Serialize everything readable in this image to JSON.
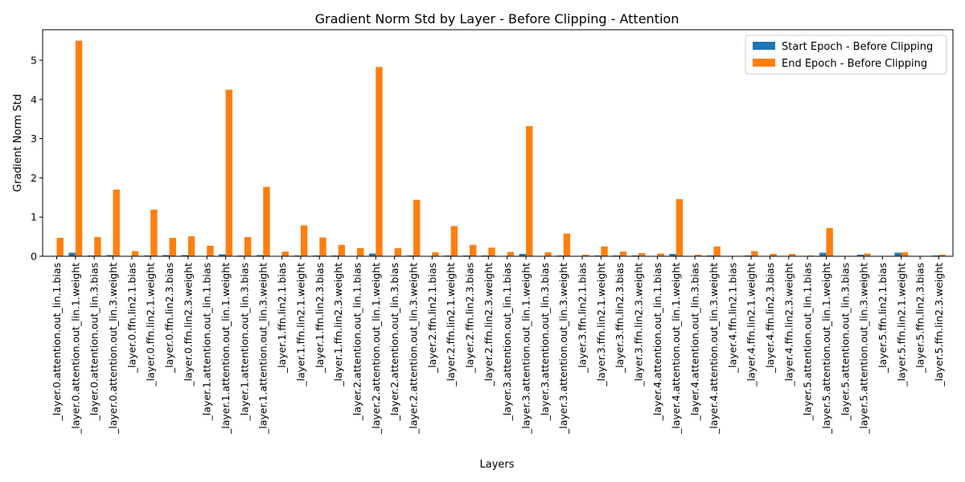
{
  "chart_data": {
    "type": "bar",
    "title": "Gradient Norm Std by Layer - Before Clipping - Attention",
    "xlabel": "Layers",
    "ylabel": "Gradient Norm Std",
    "ylim": [
      0,
      5.78
    ],
    "yticks": [
      0,
      1,
      2,
      3,
      4,
      5
    ],
    "legend_position": "top-right",
    "grid": false,
    "categories": [
      "_layer.0.attention.out_lin.1.bias",
      "_layer.0.attention.out_lin.1.weight",
      "_layer.0.attention.out_lin.3.bias",
      "_layer.0.attention.out_lin.3.weight",
      "_layer.0.ffn.lin2.1.bias",
      "_layer.0.ffn.lin2.1.weight",
      "_layer.0.ffn.lin2.3.bias",
      "_layer.0.ffn.lin2.3.weight",
      "_layer.1.attention.out_lin.1.bias",
      "_layer.1.attention.out_lin.1.weight",
      "_layer.1.attention.out_lin.3.bias",
      "_layer.1.attention.out_lin.3.weight",
      "_layer.1.ffn.lin2.1.bias",
      "_layer.1.ffn.lin2.1.weight",
      "_layer.1.ffn.lin2.3.bias",
      "_layer.1.ffn.lin2.3.weight",
      "_layer.2.attention.out_lin.1.bias",
      "_layer.2.attention.out_lin.1.weight",
      "_layer.2.attention.out_lin.3.bias",
      "_layer.2.attention.out_lin.3.weight",
      "_layer.2.ffn.lin2.1.bias",
      "_layer.2.ffn.lin2.1.weight",
      "_layer.2.ffn.lin2.3.bias",
      "_layer.2.ffn.lin2.3.weight",
      "_layer.3.attention.out_lin.1.bias",
      "_layer.3.attention.out_lin.1.weight",
      "_layer.3.attention.out_lin.3.bias",
      "_layer.3.attention.out_lin.3.weight",
      "_layer.3.ffn.lin2.1.bias",
      "_layer.3.ffn.lin2.1.weight",
      "_layer.3.ffn.lin2.3.bias",
      "_layer.3.ffn.lin2.3.weight",
      "_layer.4.attention.out_lin.1.bias",
      "_layer.4.attention.out_lin.1.weight",
      "_layer.4.attention.out_lin.3.bias",
      "_layer.4.attention.out_lin.3.weight",
      "_layer.4.ffn.lin2.1.bias",
      "_layer.4.ffn.lin2.1.weight",
      "_layer.4.ffn.lin2.3.bias",
      "_layer.4.ffn.lin2.3.weight",
      "_layer.5.attention.out_lin.1.bias",
      "_layer.5.attention.out_lin.1.weight",
      "_layer.5.attention.out_lin.3.bias",
      "_layer.5.attention.out_lin.3.weight",
      "_layer.5.ffn.lin2.1.bias",
      "_layer.5.ffn.lin2.1.weight",
      "_layer.5.ffn.lin2.3.bias",
      "_layer.5.ffn.lin2.3.weight"
    ],
    "series": [
      {
        "name": "Start Epoch - Before Clipping",
        "color": "#1f77b4",
        "values": [
          0.005,
          0.09,
          0.02,
          0.03,
          0.005,
          0.02,
          0.03,
          0.03,
          0.005,
          0.05,
          0.02,
          0.03,
          0.005,
          0.02,
          0.02,
          0.02,
          0.005,
          0.07,
          0.01,
          0.02,
          0.005,
          0.02,
          0.02,
          0.02,
          0.005,
          0.06,
          0.01,
          0.02,
          0.005,
          0.02,
          0.02,
          0.02,
          0.005,
          0.06,
          0.01,
          0.02,
          0.005,
          0.02,
          0.01,
          0.01,
          0.005,
          0.09,
          0.01,
          0.04,
          0.005,
          0.09,
          0.01,
          0.02
        ]
      },
      {
        "name": "End Epoch - Before Clipping",
        "color": "#ff7f0e",
        "values": [
          0.47,
          5.5,
          0.49,
          1.7,
          0.13,
          1.19,
          0.47,
          0.51,
          0.27,
          4.25,
          0.49,
          1.77,
          0.12,
          0.79,
          0.48,
          0.29,
          0.21,
          4.83,
          0.21,
          1.44,
          0.1,
          0.77,
          0.29,
          0.22,
          0.11,
          3.32,
          0.1,
          0.58,
          0.04,
          0.25,
          0.12,
          0.08,
          0.07,
          1.46,
          0.04,
          0.25,
          0.01,
          0.13,
          0.06,
          0.06,
          0.02,
          0.72,
          0.01,
          0.07,
          0.01,
          0.1,
          0.01,
          0.04
        ]
      }
    ]
  }
}
